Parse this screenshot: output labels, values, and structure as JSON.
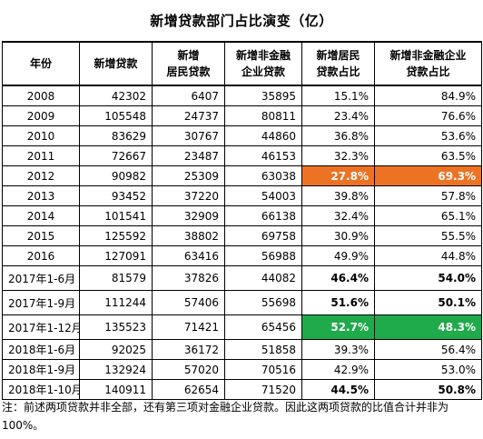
{
  "title": "新增贷款部门占比演变（亿）",
  "headers": [
    [
      "年份"
    ],
    [
      "新增贷款"
    ],
    [
      "新增",
      "居民贷款"
    ],
    [
      "新增非金融",
      "企业贷款"
    ],
    [
      "新增居民",
      "贷款占比"
    ],
    [
      "新增非金融企业",
      "贷款占比"
    ]
  ],
  "rows": [
    {
      "year": "2008",
      "total": "42302",
      "household": "6407",
      "enterprise": "35895",
      "household_share": "15.1%",
      "enterprise_share": "84.9%"
    },
    {
      "year": "2009",
      "total": "105548",
      "household": "24737",
      "enterprise": "80811",
      "household_share": "23.4%",
      "enterprise_share": "76.6%"
    },
    {
      "year": "2010",
      "total": "83629",
      "household": "30767",
      "enterprise": "44860",
      "household_share": "36.8%",
      "enterprise_share": "53.6%"
    },
    {
      "year": "2011",
      "total": "72667",
      "household": "23487",
      "enterprise": "46153",
      "household_share": "32.3%",
      "enterprise_share": "63.5%"
    },
    {
      "year": "2012",
      "total": "90982",
      "household": "25309",
      "enterprise": "63038",
      "household_share": "27.8%",
      "enterprise_share": "69.3%",
      "highlight": "orange"
    },
    {
      "year": "2013",
      "total": "93452",
      "household": "37220",
      "enterprise": "54003",
      "household_share": "39.8%",
      "enterprise_share": "57.8%"
    },
    {
      "year": "2014",
      "total": "101541",
      "household": "32909",
      "enterprise": "66138",
      "household_share": "32.4%",
      "enterprise_share": "65.1%"
    },
    {
      "year": "2015",
      "total": "125592",
      "household": "38802",
      "enterprise": "69758",
      "household_share": "30.9%",
      "enterprise_share": "55.5%"
    },
    {
      "year": "2016",
      "total": "127091",
      "household": "63416",
      "enterprise": "56988",
      "household_share": "49.9%",
      "enterprise_share": "44.8%"
    },
    {
      "year": "2017年1-6月",
      "total": "81579",
      "household": "37826",
      "enterprise": "44082",
      "household_share": "46.4%",
      "enterprise_share": "54.0%",
      "bold": true,
      "tall": true
    },
    {
      "year": "2017年1-9月",
      "total": "111244",
      "household": "57406",
      "enterprise": "55698",
      "household_share": "51.6%",
      "enterprise_share": "50.1%",
      "bold": true,
      "tall": true
    },
    {
      "year": "2017年1-12月",
      "total": "135523",
      "household": "71421",
      "enterprise": "65456",
      "household_share": "52.7%",
      "enterprise_share": "48.3%",
      "highlight": "green",
      "tall": true
    },
    {
      "year": "2018年1-6月",
      "total": "92025",
      "household": "36172",
      "enterprise": "51858",
      "household_share": "39.3%",
      "enterprise_share": "56.4%"
    },
    {
      "year": "2018年1-9月",
      "total": "132924",
      "household": "57020",
      "enterprise": "70516",
      "household_share": "42.9%",
      "enterprise_share": "53.0%"
    },
    {
      "year": "2018年1-10月",
      "total": "140911",
      "household": "62654",
      "enterprise": "71520",
      "household_share": "44.5%",
      "enterprise_share": "50.8%",
      "bold": true
    }
  ],
  "note": "注：前述两项贷款并非全部，还有第三项对金融企业贷款。因此这两项贷款的比值合计并非为100%。"
}
